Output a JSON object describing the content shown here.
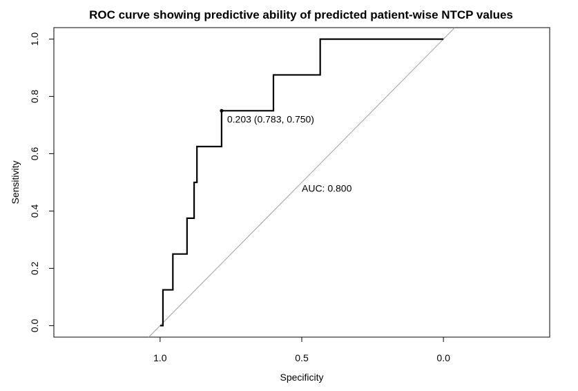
{
  "chart_data": {
    "type": "line",
    "title": "ROC curve showing predictive ability of predicted patient-wise NTCP values",
    "xlabel": "Specificity",
    "ylabel": "Sensitivity",
    "x_reversed": true,
    "xlim": [
      1.375,
      -0.375
    ],
    "ylim": [
      -0.04,
      1.04
    ],
    "x_ticks": [
      1.0,
      0.5,
      0.0
    ],
    "x_tick_labels": [
      "1.0",
      "0.5",
      "0.0"
    ],
    "y_ticks": [
      0.0,
      0.2,
      0.4,
      0.6,
      0.8,
      1.0
    ],
    "y_tick_labels": [
      "0.0",
      "0.2",
      "0.4",
      "0.6",
      "0.8",
      "1.0"
    ],
    "grid": false,
    "series": [
      {
        "color": "#000000",
        "specificity": [
          1.0,
          0.99,
          0.99,
          0.955,
          0.955,
          0.905,
          0.905,
          0.88,
          0.88,
          0.87,
          0.87,
          0.783,
          0.783,
          0.6,
          0.6,
          0.435,
          0.435,
          0.0
        ],
        "sensitivity": [
          0.0,
          0.0,
          0.125,
          0.125,
          0.25,
          0.25,
          0.375,
          0.375,
          0.5,
          0.5,
          0.625,
          0.625,
          0.75,
          0.75,
          0.875,
          0.875,
          1.0,
          1.0
        ]
      }
    ],
    "reference_line": {
      "color": "#a0a0a0"
    },
    "threshold_point": {
      "specificity": 0.783,
      "sensitivity": 0.75,
      "label": "0.203 (0.783, 0.750)"
    },
    "auc_label": {
      "text": "AUC: 0.800",
      "specificity": 0.5,
      "sensitivity": 0.48
    }
  }
}
